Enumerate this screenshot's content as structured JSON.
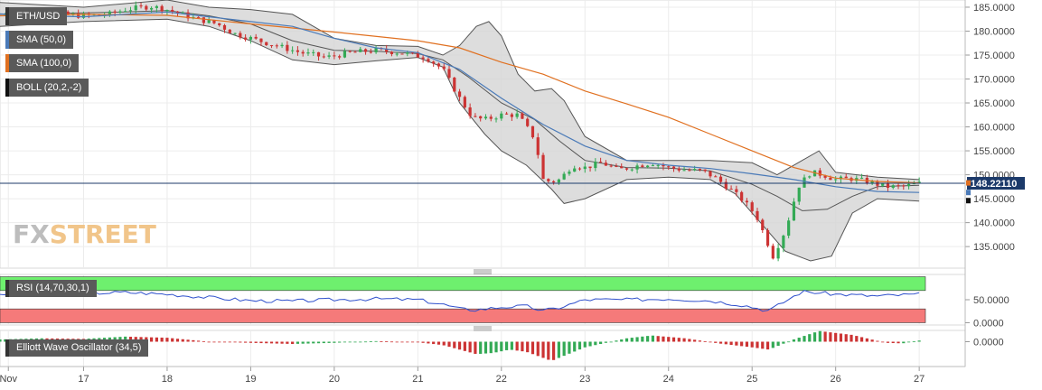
{
  "legends": {
    "symbol": "ETH/USD",
    "sma50": "SMA (50,0)",
    "sma100": "SMA (100,0)",
    "boll": "BOLL (20,2,-2)",
    "rsi": "RSI (14,70,30,1)",
    "ewo": "Elliott Wave Oscillator (34,5)"
  },
  "logo": {
    "part1": "FX",
    "part2": "STREET"
  },
  "colors": {
    "up": "#33aa55",
    "down": "#cc3333",
    "sma50": "#4a7ab8",
    "sma100": "#e07020",
    "boll": "#555555",
    "boll_fill": "#d5d5d5",
    "rsi_line": "#2e4fcc",
    "rsi_over": "#6ef06e",
    "rsi_under": "#f57a7a",
    "price_tag": "#1c3a6a",
    "sma50_tag": "#4a7ab8",
    "sma100_tag": "#e07020",
    "boll_tag": "#111111"
  },
  "chart_data": [
    {
      "type": "candlestick",
      "title": "ETH/USD",
      "ylim": [
        130.5,
        186.5
      ],
      "y_ticks": [
        "185.0000",
        "180.0000",
        "175.0000",
        "170.0000",
        "165.0000",
        "160.0000",
        "155.0000",
        "150.0000",
        "145.0000",
        "140.0000",
        "135.0000"
      ],
      "y_tick_values": [
        185,
        180,
        175,
        170,
        165,
        160,
        155,
        150,
        145,
        140,
        135
      ],
      "current_price": "148.22110",
      "current_price_value": 148.2211,
      "x_ticks": [
        "Nov",
        "17",
        "18",
        "19",
        "20",
        "21",
        "22",
        "23",
        "24",
        "25",
        "26",
        "27"
      ],
      "x_tick_days": [
        16.1,
        17,
        18,
        19,
        20,
        21,
        22,
        23,
        24,
        25,
        26,
        27
      ],
      "xlim": [
        16.0,
        27.55
      ],
      "close_path": [
        [
          16.0,
          183.3
        ],
        [
          16.5,
          183.8
        ],
        [
          17.0,
          183.2
        ],
        [
          17.3,
          183.5
        ],
        [
          17.5,
          184.5
        ],
        [
          17.8,
          185.2
        ],
        [
          18.0,
          184.5
        ],
        [
          18.3,
          182.8
        ],
        [
          18.6,
          181.5
        ],
        [
          18.8,
          179.5
        ],
        [
          19.0,
          178.5
        ],
        [
          19.3,
          177.0
        ],
        [
          19.6,
          175.5
        ],
        [
          19.9,
          174.5
        ],
        [
          20.2,
          175.5
        ],
        [
          20.5,
          176.0
        ],
        [
          20.8,
          175.5
        ],
        [
          21.1,
          174.5
        ],
        [
          21.3,
          172.0
        ],
        [
          21.5,
          166.0
        ],
        [
          21.65,
          162.0
        ],
        [
          21.8,
          161.5
        ],
        [
          22.0,
          162.5
        ],
        [
          22.2,
          162.5
        ],
        [
          22.4,
          157.5
        ],
        [
          22.5,
          149.0
        ],
        [
          22.6,
          148.5
        ],
        [
          22.7,
          149.0
        ],
        [
          22.85,
          152.0
        ],
        [
          23.0,
          151.5
        ],
        [
          23.2,
          152.5
        ],
        [
          23.4,
          151.0
        ],
        [
          23.6,
          151.8
        ],
        [
          23.8,
          152.5
        ],
        [
          24.0,
          151.5
        ],
        [
          24.2,
          151.0
        ],
        [
          24.4,
          150.8
        ],
        [
          24.55,
          149.5
        ],
        [
          24.7,
          147.5
        ],
        [
          24.9,
          144.5
        ],
        [
          25.05,
          141.5
        ],
        [
          25.25,
          133.0
        ],
        [
          25.4,
          138.5
        ],
        [
          25.55,
          147.5
        ],
        [
          25.7,
          150.5
        ],
        [
          25.85,
          150.0
        ],
        [
          26.0,
          149.0
        ],
        [
          26.2,
          149.2
        ],
        [
          26.4,
          148.5
        ],
        [
          26.6,
          147.5
        ],
        [
          26.8,
          147.5
        ],
        [
          27.0,
          148.2
        ]
      ],
      "candle_step_days": 0.0625,
      "sma50": [
        [
          16.0,
          183.6
        ],
        [
          16.5,
          183.2
        ],
        [
          17.0,
          183.0
        ],
        [
          17.5,
          183.5
        ],
        [
          18.0,
          184.0
        ],
        [
          18.5,
          183.0
        ],
        [
          19.0,
          182.0
        ],
        [
          19.5,
          181.0
        ],
        [
          20.0,
          178.5
        ],
        [
          20.5,
          176.5
        ],
        [
          21.0,
          175.5
        ],
        [
          21.5,
          172.0
        ],
        [
          22.0,
          166.0
        ],
        [
          22.5,
          160.5
        ],
        [
          23.0,
          156.0
        ],
        [
          23.5,
          153.0
        ],
        [
          24.0,
          152.0
        ],
        [
          24.5,
          151.3
        ],
        [
          25.0,
          150.2
        ],
        [
          25.5,
          149.0
        ],
        [
          26.0,
          147.5
        ],
        [
          26.5,
          146.5
        ],
        [
          27.0,
          146.3
        ]
      ],
      "sma100": [
        [
          16.0,
          183.2
        ],
        [
          17.0,
          183.5
        ],
        [
          18.0,
          183.3
        ],
        [
          19.0,
          181.5
        ],
        [
          20.0,
          179.8
        ],
        [
          21.0,
          178.0
        ],
        [
          21.5,
          176.5
        ],
        [
          22.0,
          173.5
        ],
        [
          22.5,
          171.0
        ],
        [
          23.0,
          167.5
        ],
        [
          23.5,
          164.8
        ],
        [
          24.0,
          162.0
        ],
        [
          24.5,
          158.5
        ],
        [
          25.0,
          155.0
        ],
        [
          25.5,
          151.5
        ],
        [
          26.0,
          149.3
        ],
        [
          26.5,
          148.6
        ],
        [
          27.0,
          148.3
        ]
      ],
      "boll_mid": [
        [
          16.0,
          183.5
        ],
        [
          17.0,
          183.8
        ],
        [
          17.5,
          184.0
        ],
        [
          18.0,
          184.3
        ],
        [
          18.5,
          183.2
        ],
        [
          19.0,
          181.5
        ],
        [
          19.5,
          178.0
        ],
        [
          20.0,
          176.0
        ],
        [
          20.5,
          175.8
        ],
        [
          21.0,
          175.3
        ],
        [
          21.3,
          174.0
        ],
        [
          21.6,
          170.5
        ],
        [
          22.0,
          165.0
        ],
        [
          22.4,
          161.5
        ],
        [
          22.7,
          157.0
        ],
        [
          23.0,
          153.0
        ],
        [
          23.5,
          151.5
        ],
        [
          24.0,
          151.4
        ],
        [
          24.5,
          150.8
        ],
        [
          25.0,
          148.0
        ],
        [
          25.3,
          145.5
        ],
        [
          25.6,
          142.5
        ],
        [
          25.9,
          142.8
        ],
        [
          26.2,
          145.5
        ],
        [
          26.5,
          147.5
        ],
        [
          27.0,
          147.8
        ]
      ],
      "boll_upper": [
        [
          16.0,
          186.0
        ],
        [
          17.0,
          185.0
        ],
        [
          18.0,
          186.5
        ],
        [
          18.5,
          185.0
        ],
        [
          19.0,
          184.5
        ],
        [
          19.5,
          183.5
        ],
        [
          20.0,
          178.5
        ],
        [
          20.5,
          177.0
        ],
        [
          21.0,
          176.8
        ],
        [
          21.3,
          175.0
        ],
        [
          21.5,
          177.0
        ],
        [
          21.7,
          181.0
        ],
        [
          21.85,
          182.0
        ],
        [
          22.0,
          179.0
        ],
        [
          22.2,
          171.0
        ],
        [
          22.4,
          167.5
        ],
        [
          22.6,
          168.0
        ],
        [
          22.75,
          165.5
        ],
        [
          23.0,
          158.0
        ],
        [
          23.5,
          153.0
        ],
        [
          24.0,
          153.0
        ],
        [
          24.5,
          153.0
        ],
        [
          25.0,
          152.5
        ],
        [
          25.3,
          150.0
        ],
        [
          25.55,
          152.5
        ],
        [
          25.8,
          155.0
        ],
        [
          26.0,
          150.5
        ],
        [
          26.5,
          149.5
        ],
        [
          27.0,
          149.0
        ]
      ],
      "boll_lower": [
        [
          16.0,
          181.0
        ],
        [
          17.0,
          182.0
        ],
        [
          18.0,
          182.5
        ],
        [
          18.5,
          181.0
        ],
        [
          19.0,
          178.0
        ],
        [
          19.5,
          174.0
        ],
        [
          20.0,
          173.0
        ],
        [
          20.5,
          173.8
        ],
        [
          21.0,
          174.5
        ],
        [
          21.3,
          172.5
        ],
        [
          21.5,
          165.0
        ],
        [
          21.8,
          158.5
        ],
        [
          22.0,
          155.0
        ],
        [
          22.3,
          152.0
        ],
        [
          22.6,
          147.0
        ],
        [
          22.75,
          144.0
        ],
        [
          23.0,
          145.0
        ],
        [
          23.5,
          149.0
        ],
        [
          24.0,
          149.5
        ],
        [
          24.5,
          149.0
        ],
        [
          24.8,
          146.0
        ],
        [
          25.1,
          140.0
        ],
        [
          25.4,
          134.0
        ],
        [
          25.7,
          132.0
        ],
        [
          25.95,
          133.0
        ],
        [
          26.2,
          142.0
        ],
        [
          26.5,
          145.0
        ],
        [
          27.0,
          144.5
        ]
      ]
    },
    {
      "type": "line",
      "title": "RSI (14,70,30,1)",
      "ylim": [
        -5,
        105
      ],
      "y_ticks": [
        "50.0000",
        "0.0000"
      ],
      "y_tick_values": [
        50,
        0
      ],
      "overbought": 70,
      "oversold": 30,
      "rsi": [
        [
          16.0,
          63
        ],
        [
          16.5,
          62
        ],
        [
          17.0,
          64
        ],
        [
          17.5,
          66
        ],
        [
          18.0,
          62
        ],
        [
          18.5,
          55
        ],
        [
          19.0,
          48
        ],
        [
          19.5,
          47
        ],
        [
          20.0,
          50
        ],
        [
          20.5,
          52
        ],
        [
          21.0,
          50
        ],
        [
          21.3,
          40
        ],
        [
          21.5,
          30
        ],
        [
          21.7,
          28
        ],
        [
          22.0,
          34
        ],
        [
          22.3,
          36
        ],
        [
          22.5,
          26
        ],
        [
          22.7,
          33
        ],
        [
          23.0,
          50
        ],
        [
          23.5,
          50
        ],
        [
          24.0,
          52
        ],
        [
          24.5,
          48
        ],
        [
          24.9,
          38
        ],
        [
          25.2,
          26
        ],
        [
          25.4,
          47
        ],
        [
          25.6,
          68
        ],
        [
          26.0,
          62
        ],
        [
          26.5,
          58
        ],
        [
          27.0,
          62
        ]
      ]
    },
    {
      "type": "bar",
      "title": "Elliott Wave Oscillator (34,5)",
      "ylim": [
        -2.2,
        1.0
      ],
      "y_ticks": [
        "0.0000"
      ],
      "y_tick_values": [
        0
      ],
      "ewo": [
        [
          16.0,
          0.2
        ],
        [
          16.5,
          0.3
        ],
        [
          17.0,
          0.25
        ],
        [
          17.5,
          0.45
        ],
        [
          18.0,
          0.35
        ],
        [
          18.5,
          0.0
        ],
        [
          19.0,
          -0.1
        ],
        [
          19.5,
          -0.2
        ],
        [
          20.0,
          -0.1
        ],
        [
          20.5,
          0.05
        ],
        [
          21.0,
          -0.05
        ],
        [
          21.3,
          -0.3
        ],
        [
          21.7,
          -1.1
        ],
        [
          21.9,
          -1.0
        ],
        [
          22.1,
          -0.7
        ],
        [
          22.3,
          -0.9
        ],
        [
          22.6,
          -1.7
        ],
        [
          22.8,
          -1.1
        ],
        [
          23.0,
          -0.5
        ],
        [
          23.5,
          0.3
        ],
        [
          23.8,
          0.55
        ],
        [
          24.2,
          0.3
        ],
        [
          24.6,
          -0.15
        ],
        [
          25.0,
          -0.5
        ],
        [
          25.2,
          -0.7
        ],
        [
          25.5,
          0.2
        ],
        [
          25.8,
          0.95
        ],
        [
          26.2,
          0.6
        ],
        [
          26.6,
          -0.1
        ],
        [
          26.8,
          -0.15
        ],
        [
          27.0,
          0.1
        ]
      ]
    }
  ]
}
